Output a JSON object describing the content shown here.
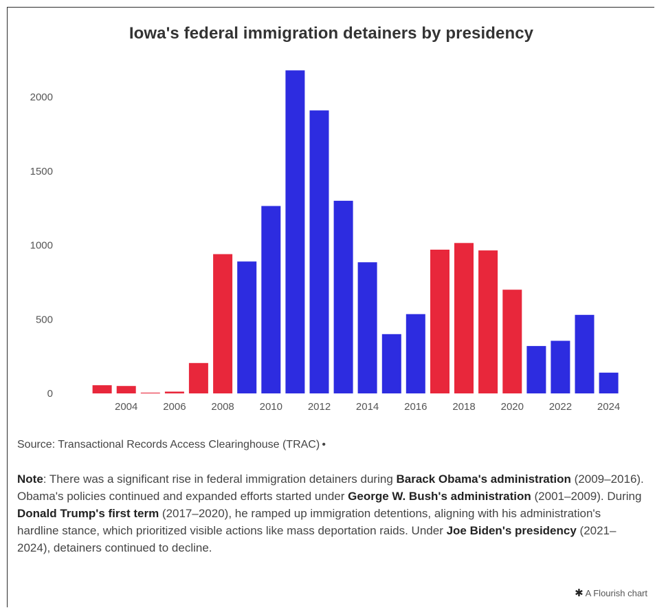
{
  "chart_data": {
    "type": "bar",
    "title": "Iowa's federal immigration detainers by presidency",
    "xlabel": "",
    "ylabel": "",
    "x": [
      2003,
      2004,
      2005,
      2006,
      2007,
      2008,
      2009,
      2010,
      2011,
      2012,
      2013,
      2014,
      2015,
      2016,
      2017,
      2018,
      2019,
      2020,
      2021,
      2022,
      2023,
      2024
    ],
    "values": [
      55,
      50,
      5,
      12,
      205,
      940,
      890,
      1265,
      2180,
      1910,
      1300,
      885,
      400,
      535,
      970,
      1015,
      965,
      700,
      320,
      355,
      530,
      140
    ],
    "bar_colors": [
      "#e8273b",
      "#e8273b",
      "#e8273b",
      "#e8273b",
      "#e8273b",
      "#e8273b",
      "#2d2ce0",
      "#2d2ce0",
      "#2d2ce0",
      "#2d2ce0",
      "#2d2ce0",
      "#2d2ce0",
      "#2d2ce0",
      "#2d2ce0",
      "#e8273b",
      "#e8273b",
      "#e8273b",
      "#e8273b",
      "#2d2ce0",
      "#2d2ce0",
      "#2d2ce0",
      "#2d2ce0"
    ],
    "x_ticks": [
      "2004",
      "2006",
      "2008",
      "2010",
      "2012",
      "2014",
      "2016",
      "2018",
      "2020",
      "2022",
      "2024"
    ],
    "y_ticks": [
      "0",
      "500",
      "1000",
      "1500",
      "2000"
    ],
    "ylim": [
      0,
      2200
    ],
    "grid": false,
    "colors": {
      "republican": "#e8273b",
      "democrat": "#2d2ce0"
    }
  },
  "source": "Source: Transactional Records Access Clearinghouse (TRAC)",
  "note": {
    "parts": [
      {
        "text": "Note",
        "bold": true
      },
      {
        "text": ": There was a significant rise in federal immigration detainers during ",
        "bold": false
      },
      {
        "text": "Barack Obama's administration",
        "bold": true
      },
      {
        "text": " (2009–2016). Obama's policies continued and expanded efforts started under ",
        "bold": false
      },
      {
        "text": "George W. Bush's administration",
        "bold": true
      },
      {
        "text": " (2001–2009). During ",
        "bold": false
      },
      {
        "text": "Donald Trump's first term",
        "bold": true
      },
      {
        "text": " (2017–2020), he ramped up immigration detentions, aligning with his administration's hardline stance, which prioritized visible actions like mass deportation raids. Under ",
        "bold": false
      },
      {
        "text": "Joe Biden's presidency",
        "bold": true
      },
      {
        "text": " (2021–2024), detainers continued to decline.",
        "bold": false
      }
    ]
  },
  "footer": {
    "brand": "A Flourish chart",
    "icon": "flourish-star-icon"
  }
}
